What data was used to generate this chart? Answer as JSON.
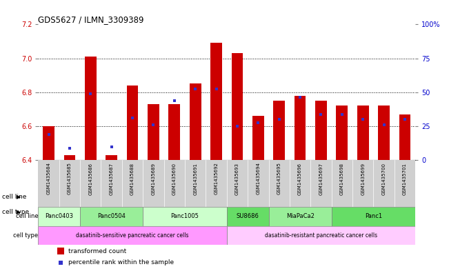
{
  "title": "GDS5627 / ILMN_3309389",
  "samples": [
    "GSM1435684",
    "GSM1435685",
    "GSM1435686",
    "GSM1435687",
    "GSM1435688",
    "GSM1435689",
    "GSM1435690",
    "GSM1435691",
    "GSM1435692",
    "GSM1435693",
    "GSM1435694",
    "GSM1435695",
    "GSM1435696",
    "GSM1435697",
    "GSM1435698",
    "GSM1435699",
    "GSM1435700",
    "GSM1435701"
  ],
  "bar_values": [
    6.6,
    6.43,
    7.01,
    6.43,
    6.84,
    6.73,
    6.73,
    6.85,
    7.09,
    7.03,
    6.66,
    6.75,
    6.78,
    6.75,
    6.72,
    6.72,
    6.72,
    6.67
  ],
  "percentile_values": [
    6.55,
    6.47,
    6.79,
    6.48,
    6.65,
    6.61,
    6.75,
    6.82,
    6.82,
    6.6,
    6.62,
    6.64,
    6.77,
    6.67,
    6.67,
    6.64,
    6.61,
    6.64
  ],
  "baseline": 6.4,
  "ylim": [
    6.4,
    7.2
  ],
  "yticks_left": [
    6.4,
    6.6,
    6.8,
    7.0,
    7.2
  ],
  "yticks_right_vals": [
    0,
    25,
    50,
    75,
    100
  ],
  "yticks_right_labels": [
    "0",
    "25",
    "50",
    "75",
    "100%"
  ],
  "bar_color": "#cc0000",
  "blue_color": "#3333cc",
  "tick_bg_color": "#d0d0d0",
  "cell_line_groups": [
    {
      "label": "Panc0403",
      "indices": [
        0,
        1
      ],
      "color": "#ccffcc"
    },
    {
      "label": "Panc0504",
      "indices": [
        2,
        3,
        4
      ],
      "color": "#99ee99"
    },
    {
      "label": "Panc1005",
      "indices": [
        5,
        6,
        7,
        8
      ],
      "color": "#ccffcc"
    },
    {
      "label": "SU8686",
      "indices": [
        9,
        10
      ],
      "color": "#66dd66"
    },
    {
      "label": "MiaPaCa2",
      "indices": [
        11,
        12,
        13
      ],
      "color": "#99ee99"
    },
    {
      "label": "Panc1",
      "indices": [
        14,
        15,
        16,
        17
      ],
      "color": "#66dd66"
    }
  ],
  "cell_type_groups": [
    {
      "label": "dasatinib-sensitive pancreatic cancer cells",
      "indices": [
        0,
        1,
        2,
        3,
        4,
        5,
        6,
        7,
        8
      ],
      "color": "#ff99ff"
    },
    {
      "label": "dasatinib-resistant pancreatic cancer cells",
      "indices": [
        9,
        10,
        11,
        12,
        13,
        14,
        15,
        16,
        17
      ],
      "color": "#ffccff"
    }
  ],
  "legend_items": [
    {
      "label": "transformed count",
      "color": "#cc0000",
      "marker": "s"
    },
    {
      "label": "percentile rank within the sample",
      "color": "#3333cc",
      "marker": "s"
    }
  ]
}
